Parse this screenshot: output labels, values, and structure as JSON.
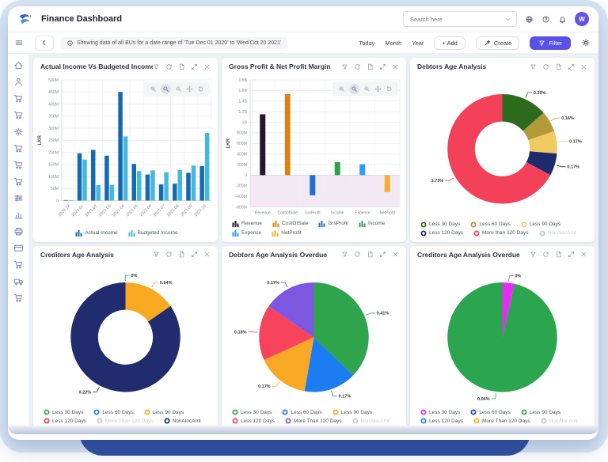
{
  "theme": {
    "accent": "#5a50e6",
    "frame_blue": "#d8e6f3",
    "laptop_base_blue": "#31519f"
  },
  "app": {
    "title": "Finance Dashboard",
    "search": {
      "placeholder": "Search here"
    },
    "avatar_initial": "W",
    "header_icons": [
      "globe-icon",
      "help-icon",
      "bell-icon"
    ]
  },
  "toolbar": {
    "info_message": "Showing data of all BUs for a date range of 'Tue Dec 01 2020' to 'Wed Oct 20 2021'",
    "range_buttons": [
      "Today",
      "Month",
      "Year"
    ],
    "add_label": "+ Add",
    "create_label": "Create",
    "filter_label": "Filter"
  },
  "sidebar": {
    "icons": [
      "home",
      "org",
      "cart",
      "cart",
      "gear",
      "cart",
      "cart",
      "cart",
      "sliders",
      "chart",
      "printer",
      "card",
      "cart",
      "truck",
      "cart"
    ]
  },
  "panel_action_icons": [
    "filter-icon",
    "refresh-icon",
    "export-icon",
    "expand-icon",
    "close-icon"
  ],
  "zoom_toolbar_icons": [
    "zoom-in-icon",
    "zoom-box-icon",
    "zoom-out-icon",
    "pan-icon",
    "reset-icon"
  ],
  "chart_data": [
    {
      "type": "bar",
      "title": "Actual Income Vs Budgeted Income",
      "ylabel": "LKR",
      "unit": "M (LKR millions)",
      "ylim": [
        0,
        500
      ],
      "ytick_step": 50,
      "rotate_xlabels": true,
      "zoom_toolbar": true,
      "legend_center": true,
      "categories": [
        "2020.12",
        "2021.01",
        "2021.02",
        "2021.03",
        "2021.04",
        "2021.05",
        "2021.06",
        "2021.07",
        "2021.08",
        "2021.09",
        "2021.10"
      ],
      "series": [
        {
          "name": "Actual Income",
          "color": "#1569b3",
          "values": [
            2,
            196,
            210,
            186,
            450,
            152,
            108,
            67,
            70,
            115,
            143
          ]
        },
        {
          "name": "Budgeted Income",
          "color": "#45b8e0",
          "values": [
            2,
            170,
            64,
            65,
            266,
            122,
            125,
            118,
            127,
            145,
            280
          ]
        }
      ],
      "legend": [
        {
          "label": "Actual Income",
          "color": "#1569b3",
          "marker": "bars"
        },
        {
          "label": "Budgeted Income",
          "color": "#45b8e0",
          "marker": "bars"
        }
      ]
    },
    {
      "type": "bar",
      "title": "Gross Profit & Net Profit Margin",
      "ylabel": "LKR",
      "unit": "M (LKR millions)",
      "ylim": [
        -600,
        1800
      ],
      "ytick_step": 200,
      "negative_fill": "#f2e9f4",
      "zoom_toolbar": true,
      "categories": [
        "Revenue",
        "CostOfSale",
        "GrsProfit",
        "Income",
        "Expence",
        "NetProfit"
      ],
      "bars": [
        {
          "label": "Revenue",
          "color": "#261437",
          "value": 1150
        },
        {
          "label": "CostOfSale",
          "color": "#d88414",
          "value": 1530
        },
        {
          "label": "GrsProfit",
          "color": "#1b6fd8",
          "value": -380
        },
        {
          "label": "Income",
          "color": "#2da24c",
          "value": 245
        },
        {
          "label": "Expence",
          "color": "#2d9cf4",
          "value": 205
        },
        {
          "label": "NetProfit",
          "color": "#f8ad2e",
          "value": -320
        }
      ],
      "legend": [
        {
          "label": "Revenue",
          "color": "#261437",
          "marker": "bars"
        },
        {
          "label": "CostOfSale",
          "color": "#d88414",
          "marker": "bars"
        },
        {
          "label": "GrsProfit",
          "color": "#1b6fd8",
          "marker": "bars"
        },
        {
          "label": "Income",
          "color": "#2da24c",
          "marker": "bars"
        },
        {
          "label": "Expence",
          "color": "#2d9cf4",
          "marker": "bars"
        },
        {
          "label": "NetProfit",
          "color": "#f8ad2e",
          "marker": "bars"
        }
      ]
    },
    {
      "type": "donut",
      "title": "Debtors Age Analysis",
      "slices": [
        {
          "label": "Less 30 Days",
          "color": "#2c6b1d",
          "value": 0.35,
          "text": "0.35%"
        },
        {
          "label": "Less 60 Days",
          "color": "#b3993a",
          "value": 0.16,
          "text": "0.16%"
        },
        {
          "label": "Less 90 Days",
          "color": "#f2ca62",
          "value": 0.17,
          "text": "0.17%"
        },
        {
          "label": "Less 120 Days",
          "color": "#1d2b6d",
          "value": 0.17,
          "text": "0.17%"
        },
        {
          "label": "More than 120 Days",
          "color": "#f4415a",
          "value": 1.73,
          "text": "1.73%"
        }
      ],
      "legend": [
        {
          "label": "Less 30 Days",
          "color": "#2c6b1d"
        },
        {
          "label": "Less 60 Days",
          "color": "#b3993a"
        },
        {
          "label": "Less 90 Days",
          "color": "#f2ca62"
        },
        {
          "label": "Less 120 Days",
          "color": "#1d2b6d"
        },
        {
          "label": "More than 120 Days",
          "color": "#f4415a"
        },
        {
          "label": "NonAlocAmt",
          "color": "#c9cdd3",
          "disabled": true
        }
      ]
    },
    {
      "type": "donut",
      "title": "Creditors Age Analysis",
      "slices": [
        {
          "label": "Less 30 Days",
          "color": "#2fae4c",
          "value": 0,
          "text": "0%"
        },
        {
          "label": "Less 90 Days",
          "color": "#f7a922",
          "value": 0.04,
          "text": "0.04%"
        },
        {
          "label": "NonAlocAmt",
          "color": "#202c6e",
          "value": 0.22,
          "text": "0.22%"
        }
      ],
      "legend": [
        {
          "label": "Less 30 Days",
          "color": "#2fae4c"
        },
        {
          "label": "Less 60 Days",
          "color": "#1d87f0"
        },
        {
          "label": "Less 90 Days",
          "color": "#f7a922"
        },
        {
          "label": "Less 120 Days",
          "color": "#f23f4f"
        },
        {
          "label": "More Than 120 Days",
          "color": "#c9cdd3",
          "disabled": true
        },
        {
          "label": "NonAlocAmt",
          "color": "#202c6e"
        }
      ]
    },
    {
      "type": "pie",
      "title": "Debtors Age Analysis Overdue",
      "slices": [
        {
          "label": "Less 30 Days",
          "color": "#2fa44d",
          "value": 0.41,
          "text": "0.41%"
        },
        {
          "label": "Less 60 Days",
          "color": "#1c7df2",
          "value": 0.17,
          "text": "0.17%"
        },
        {
          "label": "Less 90 Days",
          "color": "#f8a825",
          "value": 0.17,
          "text": "0.17%"
        },
        {
          "label": "Less 120 Days",
          "color": "#f8435c",
          "value": 0.18,
          "text": "0.18%"
        },
        {
          "label": "More Than 120 Days",
          "color": "#7e57e0",
          "value": 0.17,
          "text": "0.17%"
        }
      ],
      "legend": [
        {
          "label": "Less 30 Days",
          "color": "#2fa44d"
        },
        {
          "label": "Less 60 Days",
          "color": "#1c7df2"
        },
        {
          "label": "Less 90 Days",
          "color": "#f8a825"
        },
        {
          "label": "Less 120 Days",
          "color": "#f8435c"
        },
        {
          "label": "More Than 120 Days",
          "color": "#7e57e0"
        },
        {
          "label": "NonAlocAmt",
          "color": "#c9cdd3",
          "disabled": true
        }
      ]
    },
    {
      "type": "pie",
      "title": "Creditors Age Analysis Overdue",
      "slices": [
        {
          "label": "Less 30 Days",
          "color": "#e32df2",
          "value": 0.0015,
          "text": "0%"
        },
        {
          "label": "Less 90 Days",
          "color": "#2ba64e",
          "value": 0.04,
          "text": "0.04%"
        }
      ],
      "legend": [
        {
          "label": "Less 30 Days",
          "color": "#e32df2"
        },
        {
          "label": "Less 60 Days",
          "color": "#2244c9"
        },
        {
          "label": "Less 90 Days",
          "color": "#2ba64e"
        },
        {
          "label": "Less 120 Days",
          "color": "#1d87f0"
        },
        {
          "label": "More Than 120 Days",
          "color": "#f8b220"
        },
        {
          "label": "NonAlocAmt",
          "color": "#c9cdd3",
          "disabled": true
        }
      ]
    }
  ]
}
